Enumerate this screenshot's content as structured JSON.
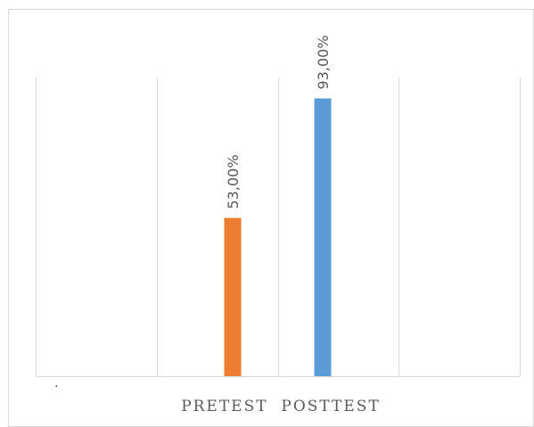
{
  "chart_data": {
    "type": "bar",
    "categories": [
      "PRETEST",
      "POSTTEST"
    ],
    "category_label_text": "PRETEST  POSTTEST",
    "values": [
      53.0,
      93.0
    ],
    "value_labels": [
      "53,00%",
      "93,00%"
    ],
    "ylim": [
      0,
      100
    ],
    "grid": true,
    "gridline_orientation": "vertical",
    "bar_colors": [
      "#ED7D31",
      "#5B9BD5"
    ],
    "gridline_color": "#D9D9D9",
    "label_color": "#595959",
    "stray_mark": "."
  }
}
